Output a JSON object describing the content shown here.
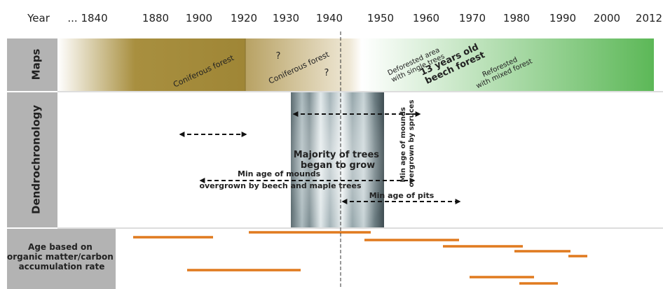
{
  "header": {
    "year_label": "Year",
    "years": [
      "... 1840",
      "1880",
      "1900",
      "1920",
      "1930",
      "1940",
      "1950",
      "1960",
      "1970",
      "1980",
      "1990",
      "2000",
      "2012"
    ]
  },
  "maps": {
    "label": "Maps",
    "annotations": [
      [
        "Coniferous forest"
      ],
      [
        "?"
      ],
      [
        "Coniferous forest"
      ],
      [
        "?"
      ],
      [
        "Deforested area",
        "with single trees"
      ],
      [
        "13 years old",
        "beech forest"
      ],
      [
        "Reforested",
        "with mixed forest"
      ]
    ]
  },
  "dendrochronology": {
    "label": "Dendrochronology",
    "annotations": [
      [
        "Majority of trees",
        "began to grow"
      ],
      [
        "Min age of mounds",
        "overgrown by beech and maple trees"
      ],
      [
        "Min age of pits"
      ],
      [
        "Min age of mounds",
        "overgrown by spruces"
      ]
    ]
  },
  "age": {
    "label": [
      "Age based on",
      "organic matter/carbon",
      "accumulation rate"
    ]
  }
}
